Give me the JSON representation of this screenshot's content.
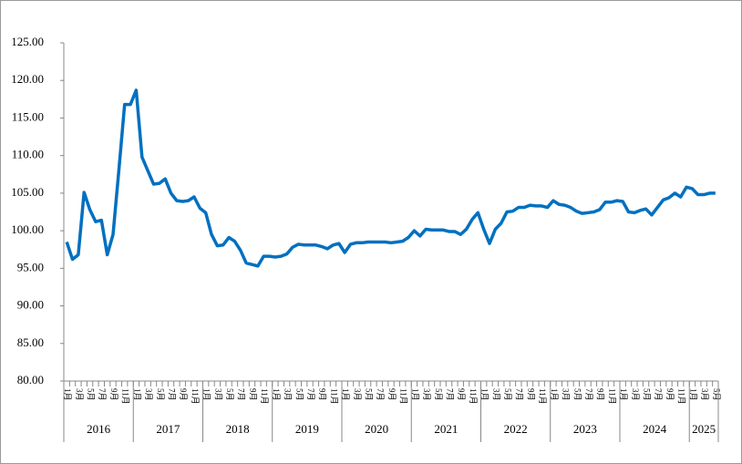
{
  "chart_data": {
    "type": "line",
    "categories": [
      "1月",
      null,
      "3月",
      null,
      "5月",
      null,
      "7月",
      null,
      "9月",
      null,
      "11月",
      null,
      "1月",
      null,
      "3月",
      null,
      "5月",
      null,
      "7月",
      null,
      "9月",
      null,
      "11月",
      null,
      "1月",
      null,
      "3月",
      null,
      "5月",
      null,
      "7月",
      null,
      "9月",
      null,
      "11月",
      null,
      "1月",
      null,
      "3月",
      null,
      "5月",
      null,
      "7月",
      null,
      "9月",
      null,
      "11月",
      null,
      "1月",
      null,
      "3月",
      null,
      "5月",
      null,
      "7月",
      null,
      "9月",
      null,
      "11月",
      null,
      "1月",
      null,
      "3月",
      null,
      "5月",
      null,
      "7月",
      null,
      "9月",
      null,
      "11月",
      null,
      "1月",
      null,
      "3月",
      null,
      "5月",
      null,
      "7月",
      null,
      "9月",
      null,
      "11月",
      null,
      "1月",
      null,
      "3月",
      null,
      "5月",
      null,
      "7月",
      null,
      "9月",
      null,
      "11月",
      null,
      "1月",
      null,
      "3月",
      null,
      "5月",
      null,
      "7月",
      null,
      "9月",
      null,
      "11月",
      null,
      "1月",
      null,
      "3月",
      null,
      "5月"
    ],
    "years": [
      "2016",
      "2017",
      "2018",
      "2019",
      "2020",
      "2021",
      "2022",
      "2023",
      "2024",
      "2025"
    ],
    "series": [
      {
        "color": "#0070c0",
        "values": [
          98.5,
          96.2,
          96.8,
          105.1,
          102.8,
          101.2,
          101.4,
          96.8,
          99.5,
          108,
          116.8,
          116.8,
          118.7,
          109.8,
          108,
          106.2,
          106.3,
          106.9,
          105,
          104,
          103.9,
          104,
          104.5,
          103,
          102.4,
          99.5,
          98,
          98.1,
          99.1,
          98.6,
          97.4,
          95.7,
          95.5,
          95.3,
          96.6,
          96.6,
          96.5,
          96.6,
          96.9,
          97.8,
          98.2,
          98.1,
          98.1,
          98.1,
          97.9,
          97.6,
          98.1,
          98.3,
          97.1,
          98.2,
          98.4,
          98.4,
          98.5,
          98.5,
          98.5,
          98.5,
          98.4,
          98.5,
          98.6,
          99.1,
          100,
          99.3,
          100.2,
          100.1,
          100.1,
          100.1,
          99.9,
          99.9,
          99.5,
          100.2,
          101.5,
          102.4,
          100.2,
          98.3,
          100.2,
          101,
          102.5,
          102.6,
          103.1,
          103.1,
          103.4,
          103.3,
          103.3,
          103.1,
          104,
          103.5,
          103.4,
          103.1,
          102.6,
          102.3,
          102.4,
          102.5,
          102.8,
          103.8,
          103.8,
          104,
          103.9,
          102.5,
          102.4,
          102.7,
          102.9,
          102.1,
          103.1,
          104.1,
          104.4,
          105,
          104.5,
          105.8,
          105.6,
          104.8,
          104.8,
          105,
          105
        ]
      }
    ],
    "ylim": [
      80,
      125
    ],
    "yticks": [
      {
        "value": 80,
        "label": "80.00"
      },
      {
        "value": 85,
        "label": "85.00"
      },
      {
        "value": 90,
        "label": "90.00"
      },
      {
        "value": 95,
        "label": "95.00"
      },
      {
        "value": 100,
        "label": "100.00"
      },
      {
        "value": 105,
        "label": "105.00"
      },
      {
        "value": 110,
        "label": "110.00"
      },
      {
        "value": 115,
        "label": "115.00"
      },
      {
        "value": 120,
        "label": "120.00"
      },
      {
        "value": 125,
        "label": "125.00"
      }
    ]
  }
}
